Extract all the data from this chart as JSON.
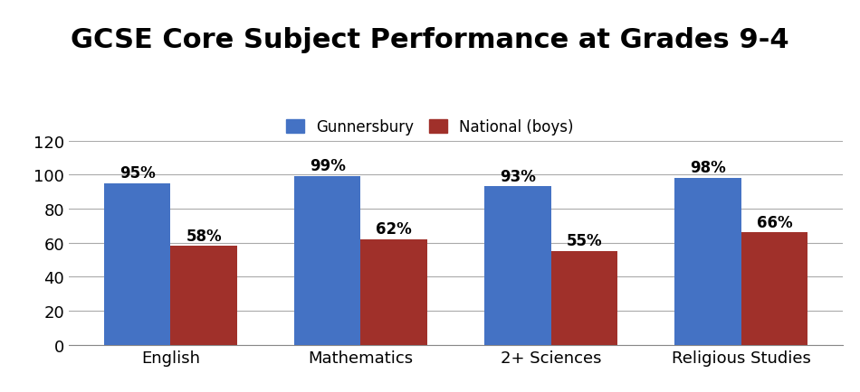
{
  "title": "GCSE Core Subject Performance at Grades 9-4",
  "categories": [
    "English",
    "Mathematics",
    "2+ Sciences",
    "Religious Studies"
  ],
  "gunnersbury": [
    95,
    99,
    93,
    98
  ],
  "national": [
    58,
    62,
    55,
    66
  ],
  "gunnersbury_color": "#4472C4",
  "national_color": "#A0302A",
  "legend_labels": [
    "Gunnersbury",
    "National (boys)"
  ],
  "ylim": [
    0,
    120
  ],
  "yticks": [
    0,
    20,
    40,
    60,
    80,
    100,
    120
  ],
  "bar_width": 0.35,
  "title_fontsize": 22,
  "tick_fontsize": 13,
  "legend_fontsize": 12,
  "annotation_fontsize": 12,
  "bg_color": "#FFFFFF",
  "grid_color": "#AAAAAA"
}
